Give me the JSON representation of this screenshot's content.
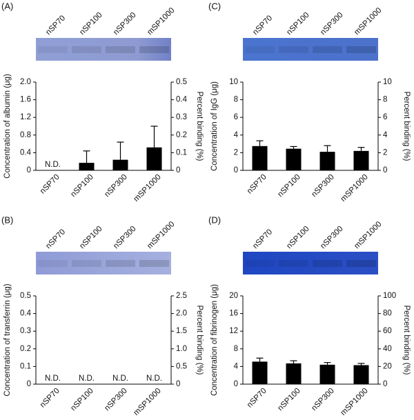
{
  "chart_data": [
    {
      "type": "bar",
      "panel": "(A)",
      "y_label": "Concentration of albumin (μg)",
      "y2_label": "Percent binding (%)",
      "categories": [
        "nSP70",
        "nSP100",
        "nSP300",
        "mSP1000"
      ],
      "color": "#000000",
      "values": [
        null,
        0.17,
        0.24,
        0.52
      ],
      "errors": [
        null,
        0.27,
        0.4,
        0.48
      ],
      "value_labels": [
        "N.D.",
        null,
        null,
        null
      ],
      "ylim": [
        0,
        2
      ],
      "yticks": [
        0,
        0.4,
        0.8,
        1.2,
        1.6,
        {
          "value": 2,
          "label": "2.0"
        }
      ],
      "y2lim": [
        0,
        0.5
      ],
      "y2ticks": [
        0,
        0.1,
        0.2,
        0.3,
        0.4,
        0.5
      ]
    },
    {
      "type": "bar",
      "panel": "(C)",
      "y_label": "Concentration of IgG (μg)",
      "y2_label": "Percent binding (%)",
      "categories": [
        "nSP70",
        "nSP100",
        "nSP300",
        "mSP1000"
      ],
      "color": "#000000",
      "values": [
        2.75,
        2.45,
        2.1,
        2.2
      ],
      "errors": [
        0.6,
        0.25,
        0.7,
        0.4
      ],
      "ylim": [
        0,
        10
      ],
      "yticks": [
        0,
        2,
        4,
        6,
        8,
        10
      ],
      "y2lim": [
        0,
        10
      ],
      "y2ticks": [
        0,
        2,
        4,
        6,
        8,
        10
      ]
    },
    {
      "type": "bar",
      "panel": "(B)",
      "y_label": "Concentration of transferrin (μg)",
      "y2_label": "Percent binding (%)",
      "categories": [
        "nSP70",
        "nSP100",
        "nSP300",
        "mSP1000"
      ],
      "color": "#000000",
      "values": [
        null,
        null,
        null,
        null
      ],
      "errors": [
        null,
        null,
        null,
        null
      ],
      "value_labels": [
        "N.D.",
        "N.D.",
        "N.D.",
        "N.D."
      ],
      "ylim": [
        0,
        0.5
      ],
      "yticks": [
        0,
        0.1,
        0.2,
        0.3,
        0.4,
        0.5
      ],
      "y2lim": [
        0,
        2.5
      ],
      "y2ticks": [
        0,
        0.5,
        {
          "value": 1,
          "label": "1.0"
        },
        1.5,
        {
          "value": 2,
          "label": "2.0"
        },
        2.5
      ]
    },
    {
      "type": "bar",
      "panel": "(D)",
      "y_label": "Concentration of fibrinogen (μg)",
      "y2_label": "Percent binding (%)",
      "categories": [
        "nSP70",
        "nSP100",
        "nSP300",
        "mSP1000"
      ],
      "color": "#000000",
      "values": [
        5.1,
        4.7,
        4.4,
        4.3
      ],
      "errors": [
        0.8,
        0.6,
        0.5,
        0.4
      ],
      "ylim": [
        0,
        20
      ],
      "yticks": [
        0,
        4,
        8,
        12,
        16,
        20
      ],
      "y2lim": [
        0,
        100
      ],
      "y2ticks": [
        0,
        20,
        40,
        60,
        80,
        100
      ]
    }
  ]
}
